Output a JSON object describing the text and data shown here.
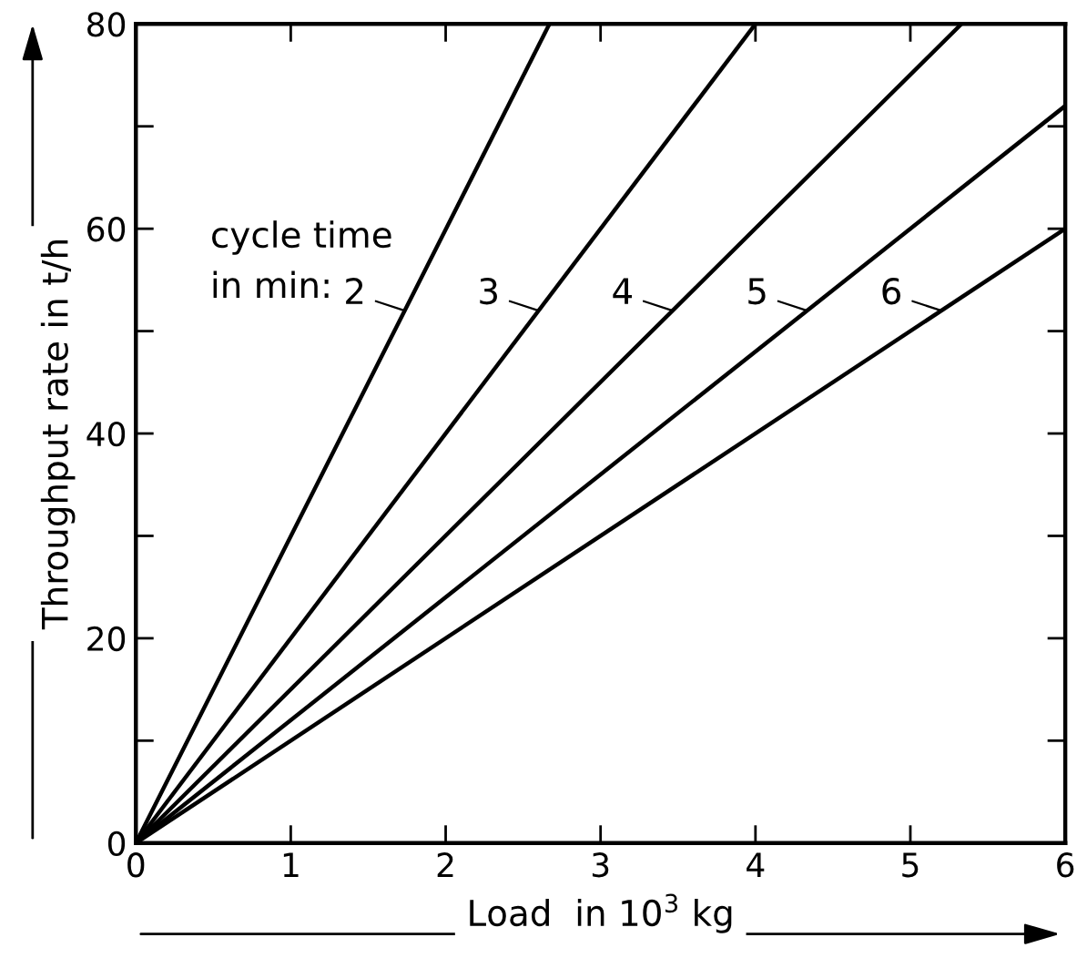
{
  "chart_data": {
    "type": "line",
    "xlabel": "Load  in 10$^{3}$ kg",
    "ylabel": "Throughput rate in t/h",
    "xlim": [
      0,
      6
    ],
    "ylim": [
      0,
      80
    ],
    "xticks": [
      0,
      1,
      2,
      3,
      4,
      5,
      6
    ],
    "yticks": [
      0,
      {
        "value": 10,
        "label": null
      },
      20,
      {
        "value": 30,
        "label": null
      },
      40,
      {
        "value": 50,
        "label": null
      },
      60,
      {
        "value": 70,
        "label": null
      },
      80
    ],
    "grid": false,
    "legend": "top left",
    "legend_title": "cycle time\nin min:",
    "marker": "none",
    "line_style": "solid",
    "series": [
      {
        "name": "2",
        "color": "#000000",
        "x": [
          0,
          2.67
        ],
        "values": [
          0,
          80
        ]
      },
      {
        "name": "3",
        "color": "#000000",
        "x": [
          0,
          4
        ],
        "values": [
          0,
          80
        ]
      },
      {
        "name": "4",
        "color": "#000000",
        "x": [
          0,
          5.33
        ],
        "values": [
          0,
          80
        ]
      },
      {
        "name": "5",
        "color": "#000000",
        "x": [
          0,
          6
        ],
        "values": [
          0,
          72
        ]
      },
      {
        "name": "6",
        "color": "#000000",
        "x": [
          0,
          6
        ],
        "values": [
          0,
          60
        ]
      }
    ]
  }
}
